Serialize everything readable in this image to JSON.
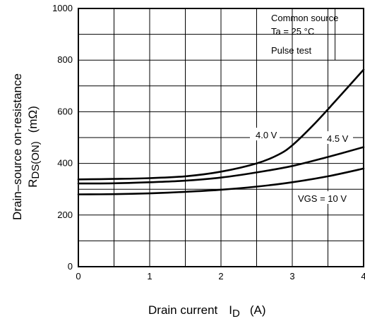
{
  "chart_data": {
    "type": "line",
    "xlim": [
      0,
      4
    ],
    "ylim": [
      0,
      1000
    ],
    "x_ticks": [
      0,
      1,
      2,
      3,
      4
    ],
    "y_ticks": [
      0,
      200,
      400,
      600,
      800,
      1000
    ],
    "x_tick_labels": [
      "0",
      "1",
      "2",
      "3",
      "4"
    ],
    "y_tick_labels": [
      "0",
      "200",
      "400",
      "600",
      "800",
      "1000"
    ],
    "x_grid_minor": 0.5,
    "y_grid_minor": 100,
    "grid": true,
    "xlabel": {
      "main": "Drain current",
      "symbol": "I",
      "subscript": "D",
      "unit": "(A)"
    },
    "ylabel": {
      "line1": "Drain–source on-resistance",
      "symbol": "R",
      "subscript": "DS(ON)",
      "unit": "(mΩ)"
    },
    "conditions": [
      "Common source",
      "Ta = 25 °C",
      "Pulse test"
    ],
    "series": [
      {
        "name": "4.0 V",
        "x": [
          0,
          0.5,
          1.0,
          1.5,
          2.0,
          2.5,
          2.8,
          3.0,
          3.3,
          3.6,
          4.0
        ],
        "y": [
          338,
          340,
          343,
          350,
          368,
          400,
          433,
          470,
          550,
          640,
          763
        ]
      },
      {
        "name": "4.5 V",
        "x": [
          0,
          0.5,
          1.0,
          1.5,
          2.0,
          2.5,
          3.0,
          3.5,
          4.0
        ],
        "y": [
          322,
          323,
          327,
          333,
          345,
          365,
          390,
          425,
          463
        ]
      },
      {
        "name": "VGS = 10 V",
        "label_main": "V",
        "label_sub": "GS",
        "label_rest": " = 10 V",
        "x": [
          0,
          0.5,
          1.0,
          1.5,
          2.0,
          2.5,
          3.0,
          3.5,
          4.0
        ],
        "y": [
          280,
          281,
          284,
          290,
          298,
          310,
          327,
          350,
          380
        ]
      }
    ]
  }
}
